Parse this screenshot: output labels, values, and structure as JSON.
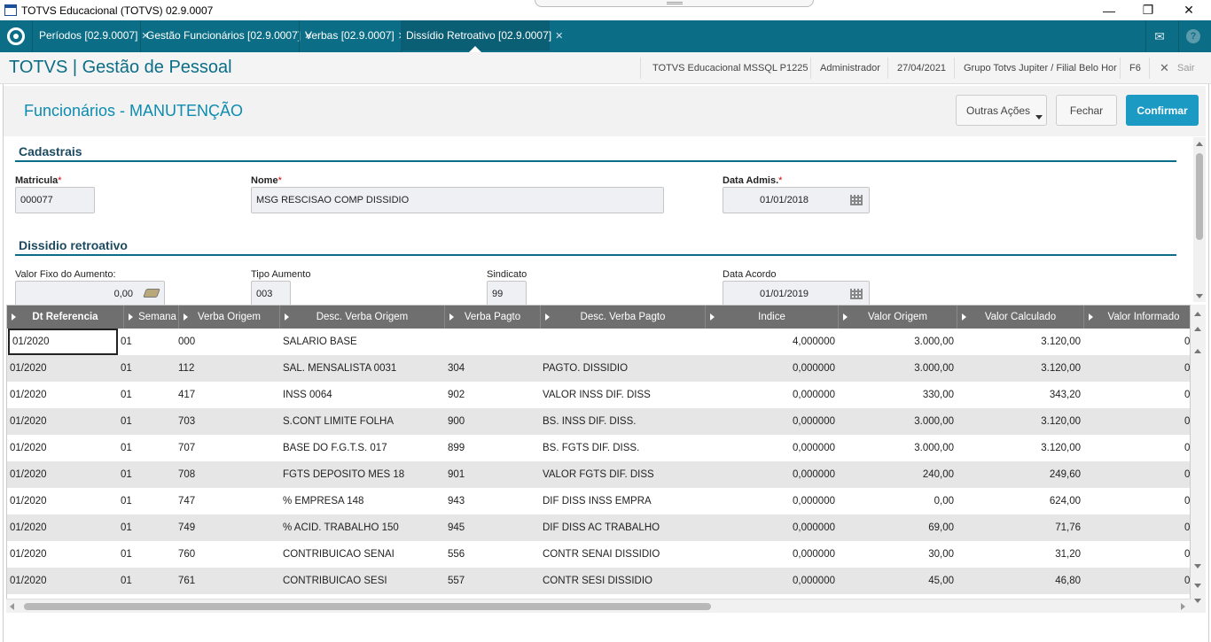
{
  "window": {
    "title": "TOTVS Educacional (TOTVS) 02.9.0007",
    "minimize": "—",
    "restore": "❐",
    "close": "✕"
  },
  "tabs": [
    {
      "label": "Períodos [02.9.0007]"
    },
    {
      "label": "Gestão Funcionários [02.9.0007]"
    },
    {
      "label": "Verbas [02.9.0007]"
    },
    {
      "label": "Dissídio Retroativo [02.9.0007]"
    }
  ],
  "tab_close": "✕",
  "header": {
    "brand": "TOTVS | Gestão de Pessoal",
    "env": "TOTVS Educacional MSSQL P1225",
    "user": "Administrador",
    "date": "27/04/2021",
    "group": "Grupo Totvs Jupiter / Filial Belo Hor",
    "f6": "F6",
    "exit": "Sair",
    "exit_icon": "✕"
  },
  "form": {
    "title": "Funcionários - MANUTENÇÃO",
    "other_actions": "Outras Ações",
    "close": "Fechar",
    "confirm": "Confirmar"
  },
  "sections": {
    "cadastrais": "Cadastrais",
    "dissidio": "Dissidio retroativo"
  },
  "fields": {
    "matricula_label": "Matricula",
    "matricula": "000077",
    "nome_label": "Nome",
    "nome": "MSG RESCISAO COMP DISSIDIO",
    "data_admis_label": "Data Admis.",
    "data_admis": "01/01/2018",
    "valor_fixo_label": "Valor Fixo do Aumento:",
    "valor_fixo": "0,00",
    "tipo_aumento_label": "Tipo Aumento",
    "tipo_aumento": "003",
    "sindicato_label": "Sindicato",
    "sindicato": "99",
    "data_acordo_label": "Data Acordo",
    "data_acordo": "01/01/2019",
    "required_mark": "*"
  },
  "grid": {
    "columns": [
      "Dt Referencia",
      "Semana",
      "Verba Origem",
      "Desc. Verba Origem",
      "Verba Pagto",
      "Desc. Verba Pagto",
      "Indice",
      "Valor Origem",
      "Valor Calculado",
      "Valor Informado"
    ],
    "rows": [
      [
        "01/2020",
        "01",
        "000",
        "SALARIO BASE",
        "",
        "",
        "4,000000",
        "3.000,00",
        "3.120,00",
        "0"
      ],
      [
        "01/2020",
        "01",
        "112",
        "SAL. MENSALISTA 0031",
        "304",
        "PAGTO. DISSIDIO",
        "0,000000",
        "3.000,00",
        "3.120,00",
        "0"
      ],
      [
        "01/2020",
        "01",
        "417",
        "INSS 0064",
        "902",
        "VALOR INSS DIF. DISS",
        "0,000000",
        "330,00",
        "343,20",
        "0"
      ],
      [
        "01/2020",
        "01",
        "703",
        "S.CONT LIMITE FOLHA",
        "900",
        "BS. INSS DIF. DISS.",
        "0,000000",
        "3.000,00",
        "3.120,00",
        "0"
      ],
      [
        "01/2020",
        "01",
        "707",
        "BASE DO F.G.T.S. 017",
        "899",
        "BS. FGTS DIF. DISS.",
        "0,000000",
        "3.000,00",
        "3.120,00",
        "0"
      ],
      [
        "01/2020",
        "01",
        "708",
        "FGTS DEPOSITO MES 18",
        "901",
        "VALOR FGTS DIF. DISS",
        "0,000000",
        "240,00",
        "249,60",
        "0"
      ],
      [
        "01/2020",
        "01",
        "747",
        "% EMPRESA  148",
        "943",
        "DIF DISS INSS EMPRA",
        "0,000000",
        "0,00",
        "624,00",
        "0"
      ],
      [
        "01/2020",
        "01",
        "749",
        "% ACID. TRABALHO 150",
        "945",
        "DIF DISS AC TRABALHO",
        "0,000000",
        "69,00",
        "71,76",
        "0"
      ],
      [
        "01/2020",
        "01",
        "760",
        "CONTRIBUICAO SENAI",
        "556",
        "CONTR SENAI DISSIDIO",
        "0,000000",
        "30,00",
        "31,20",
        "0"
      ],
      [
        "01/2020",
        "01",
        "761",
        "CONTRIBUICAO SESI",
        "557",
        "CONTR SESI DISSIDIO",
        "0,000000",
        "45,00",
        "46,80",
        "0"
      ]
    ]
  },
  "icons": {
    "mail": "✉",
    "help": "?"
  }
}
